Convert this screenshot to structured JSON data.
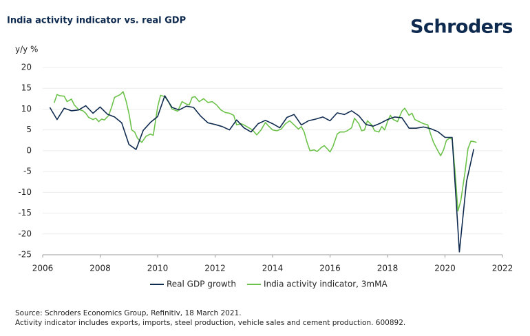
{
  "chart_data": {
    "type": "line",
    "title": "India activity indicator vs. real GDP",
    "logo": "Schroders",
    "y_label": "y/y %",
    "xlim": [
      2006,
      2022
    ],
    "xticks": [
      2006,
      2008,
      2010,
      2012,
      2014,
      2016,
      2018,
      2020,
      2022
    ],
    "ylim": [
      -25,
      20
    ],
    "yticks": [
      20,
      15,
      10,
      5,
      0,
      -5,
      -10,
      -15,
      -20,
      -25
    ],
    "grid": true,
    "legend": "bottom",
    "series": [
      {
        "name": "Real GDP growth",
        "color": "#0f2a4f",
        "x": [
          2006.25,
          2006.5,
          2006.75,
          2007.0,
          2007.25,
          2007.5,
          2007.75,
          2008.0,
          2008.25,
          2008.5,
          2008.75,
          2009.0,
          2009.25,
          2009.5,
          2009.75,
          2010.0,
          2010.25,
          2010.5,
          2010.75,
          2011.0,
          2011.25,
          2011.5,
          2011.75,
          2012.0,
          2012.25,
          2012.5,
          2012.75,
          2013.0,
          2013.25,
          2013.5,
          2013.75,
          2014.0,
          2014.25,
          2014.5,
          2014.75,
          2015.0,
          2015.25,
          2015.5,
          2015.75,
          2016.0,
          2016.25,
          2016.5,
          2016.75,
          2017.0,
          2017.25,
          2017.5,
          2017.75,
          2018.0,
          2018.25,
          2018.5,
          2018.75,
          2019.0,
          2019.25,
          2019.5,
          2019.75,
          2020.0,
          2020.25,
          2020.5,
          2020.75,
          2021.0
        ],
        "values": [
          10.4,
          7.5,
          10.2,
          9.6,
          9.8,
          10.8,
          9.0,
          10.5,
          8.8,
          8.1,
          6.7,
          1.5,
          0.3,
          4.9,
          6.8,
          8.2,
          13.2,
          10.4,
          9.8,
          10.7,
          10.4,
          8.3,
          6.7,
          6.3,
          5.8,
          5.0,
          7.4,
          5.5,
          4.5,
          6.5,
          7.3,
          6.5,
          5.5,
          8.0,
          8.7,
          6.2,
          7.2,
          7.6,
          8.1,
          7.2,
          9.1,
          8.7,
          9.6,
          8.4,
          6.3,
          5.9,
          6.6,
          7.5,
          8.1,
          7.9,
          5.4,
          5.4,
          5.7,
          5.3,
          4.6,
          3.2,
          3.2,
          -24.3,
          -7.4,
          0.4
        ]
      },
      {
        "name": "India activity indicator, 3mMA",
        "color": "#6cc24a",
        "x": [
          2006.4,
          2006.5,
          2006.6,
          2006.75,
          2006.85,
          2007.0,
          2007.1,
          2007.25,
          2007.4,
          2007.5,
          2007.6,
          2007.75,
          2007.85,
          2007.95,
          2008.05,
          2008.15,
          2008.3,
          2008.4,
          2008.5,
          2008.7,
          2008.8,
          2008.9,
          2009.0,
          2009.1,
          2009.2,
          2009.3,
          2009.45,
          2009.6,
          2009.75,
          2009.85,
          2010.0,
          2010.1,
          2010.25,
          2010.4,
          2010.5,
          2010.7,
          2010.85,
          2011.0,
          2011.1,
          2011.2,
          2011.3,
          2011.45,
          2011.6,
          2011.75,
          2011.9,
          2012.05,
          2012.2,
          2012.35,
          2012.5,
          2012.65,
          2012.75,
          2012.9,
          2013.0,
          2013.15,
          2013.3,
          2013.45,
          2013.6,
          2013.75,
          2013.85,
          2014.0,
          2014.15,
          2014.3,
          2014.45,
          2014.6,
          2014.75,
          2014.9,
          2015.0,
          2015.1,
          2015.2,
          2015.3,
          2015.45,
          2015.55,
          2015.7,
          2015.8,
          2015.9,
          2016.0,
          2016.1,
          2016.25,
          2016.35,
          2016.5,
          2016.6,
          2016.75,
          2016.85,
          2017.0,
          2017.1,
          2017.2,
          2017.3,
          2017.45,
          2017.55,
          2017.7,
          2017.8,
          2017.9,
          2018.0,
          2018.1,
          2018.2,
          2018.35,
          2018.5,
          2018.6,
          2018.75,
          2018.85,
          2018.95,
          2019.1,
          2019.25,
          2019.4,
          2019.5,
          2019.6,
          2019.75,
          2019.85,
          2019.95,
          2020.05,
          2020.15,
          2020.25,
          2020.35,
          2020.45,
          2020.55,
          2020.7,
          2020.8,
          2020.9,
          2021.0,
          2021.1
        ],
        "values": [
          11.5,
          13.5,
          13.2,
          13.1,
          11.8,
          12.4,
          11.0,
          9.9,
          9.6,
          9.0,
          8.0,
          7.5,
          7.8,
          7.0,
          7.6,
          7.4,
          8.5,
          10.5,
          12.8,
          13.5,
          14.2,
          12.0,
          9.0,
          5.0,
          4.5,
          3.0,
          2.0,
          3.5,
          4.0,
          3.7,
          10.5,
          13.3,
          13.0,
          11.5,
          10.0,
          9.5,
          11.8,
          11.2,
          11.0,
          12.8,
          13.0,
          11.8,
          12.5,
          11.6,
          11.8,
          11.0,
          9.8,
          9.2,
          9.0,
          8.5,
          6.2,
          6.5,
          6.2,
          5.6,
          5.0,
          3.8,
          5.0,
          6.8,
          6.0,
          5.0,
          4.8,
          5.2,
          6.5,
          7.2,
          6.2,
          5.2,
          5.8,
          4.5,
          2.0,
          0.0,
          0.2,
          -0.2,
          0.8,
          1.2,
          0.5,
          -0.3,
          1.0,
          4.0,
          4.5,
          4.5,
          4.8,
          5.5,
          7.8,
          6.5,
          4.8,
          5.0,
          7.2,
          6.2,
          4.8,
          4.5,
          5.8,
          5.0,
          7.0,
          8.5,
          7.5,
          7.0,
          9.5,
          10.2,
          8.5,
          9.0,
          7.5,
          7.0,
          6.5,
          6.2,
          4.0,
          2.0,
          0.0,
          -1.2,
          0.2,
          2.5,
          3.0,
          2.8,
          -5.0,
          -14.5,
          -12.0,
          -5.0,
          0.5,
          2.3,
          2.2,
          2.0
        ]
      }
    ],
    "notes": [
      "Source: Schroders Economics Group, Refinitiv, 18 March 2021.",
      "Activity indicator includes exports, imports, steel production, vehicle sales and cement production. 600892."
    ]
  }
}
